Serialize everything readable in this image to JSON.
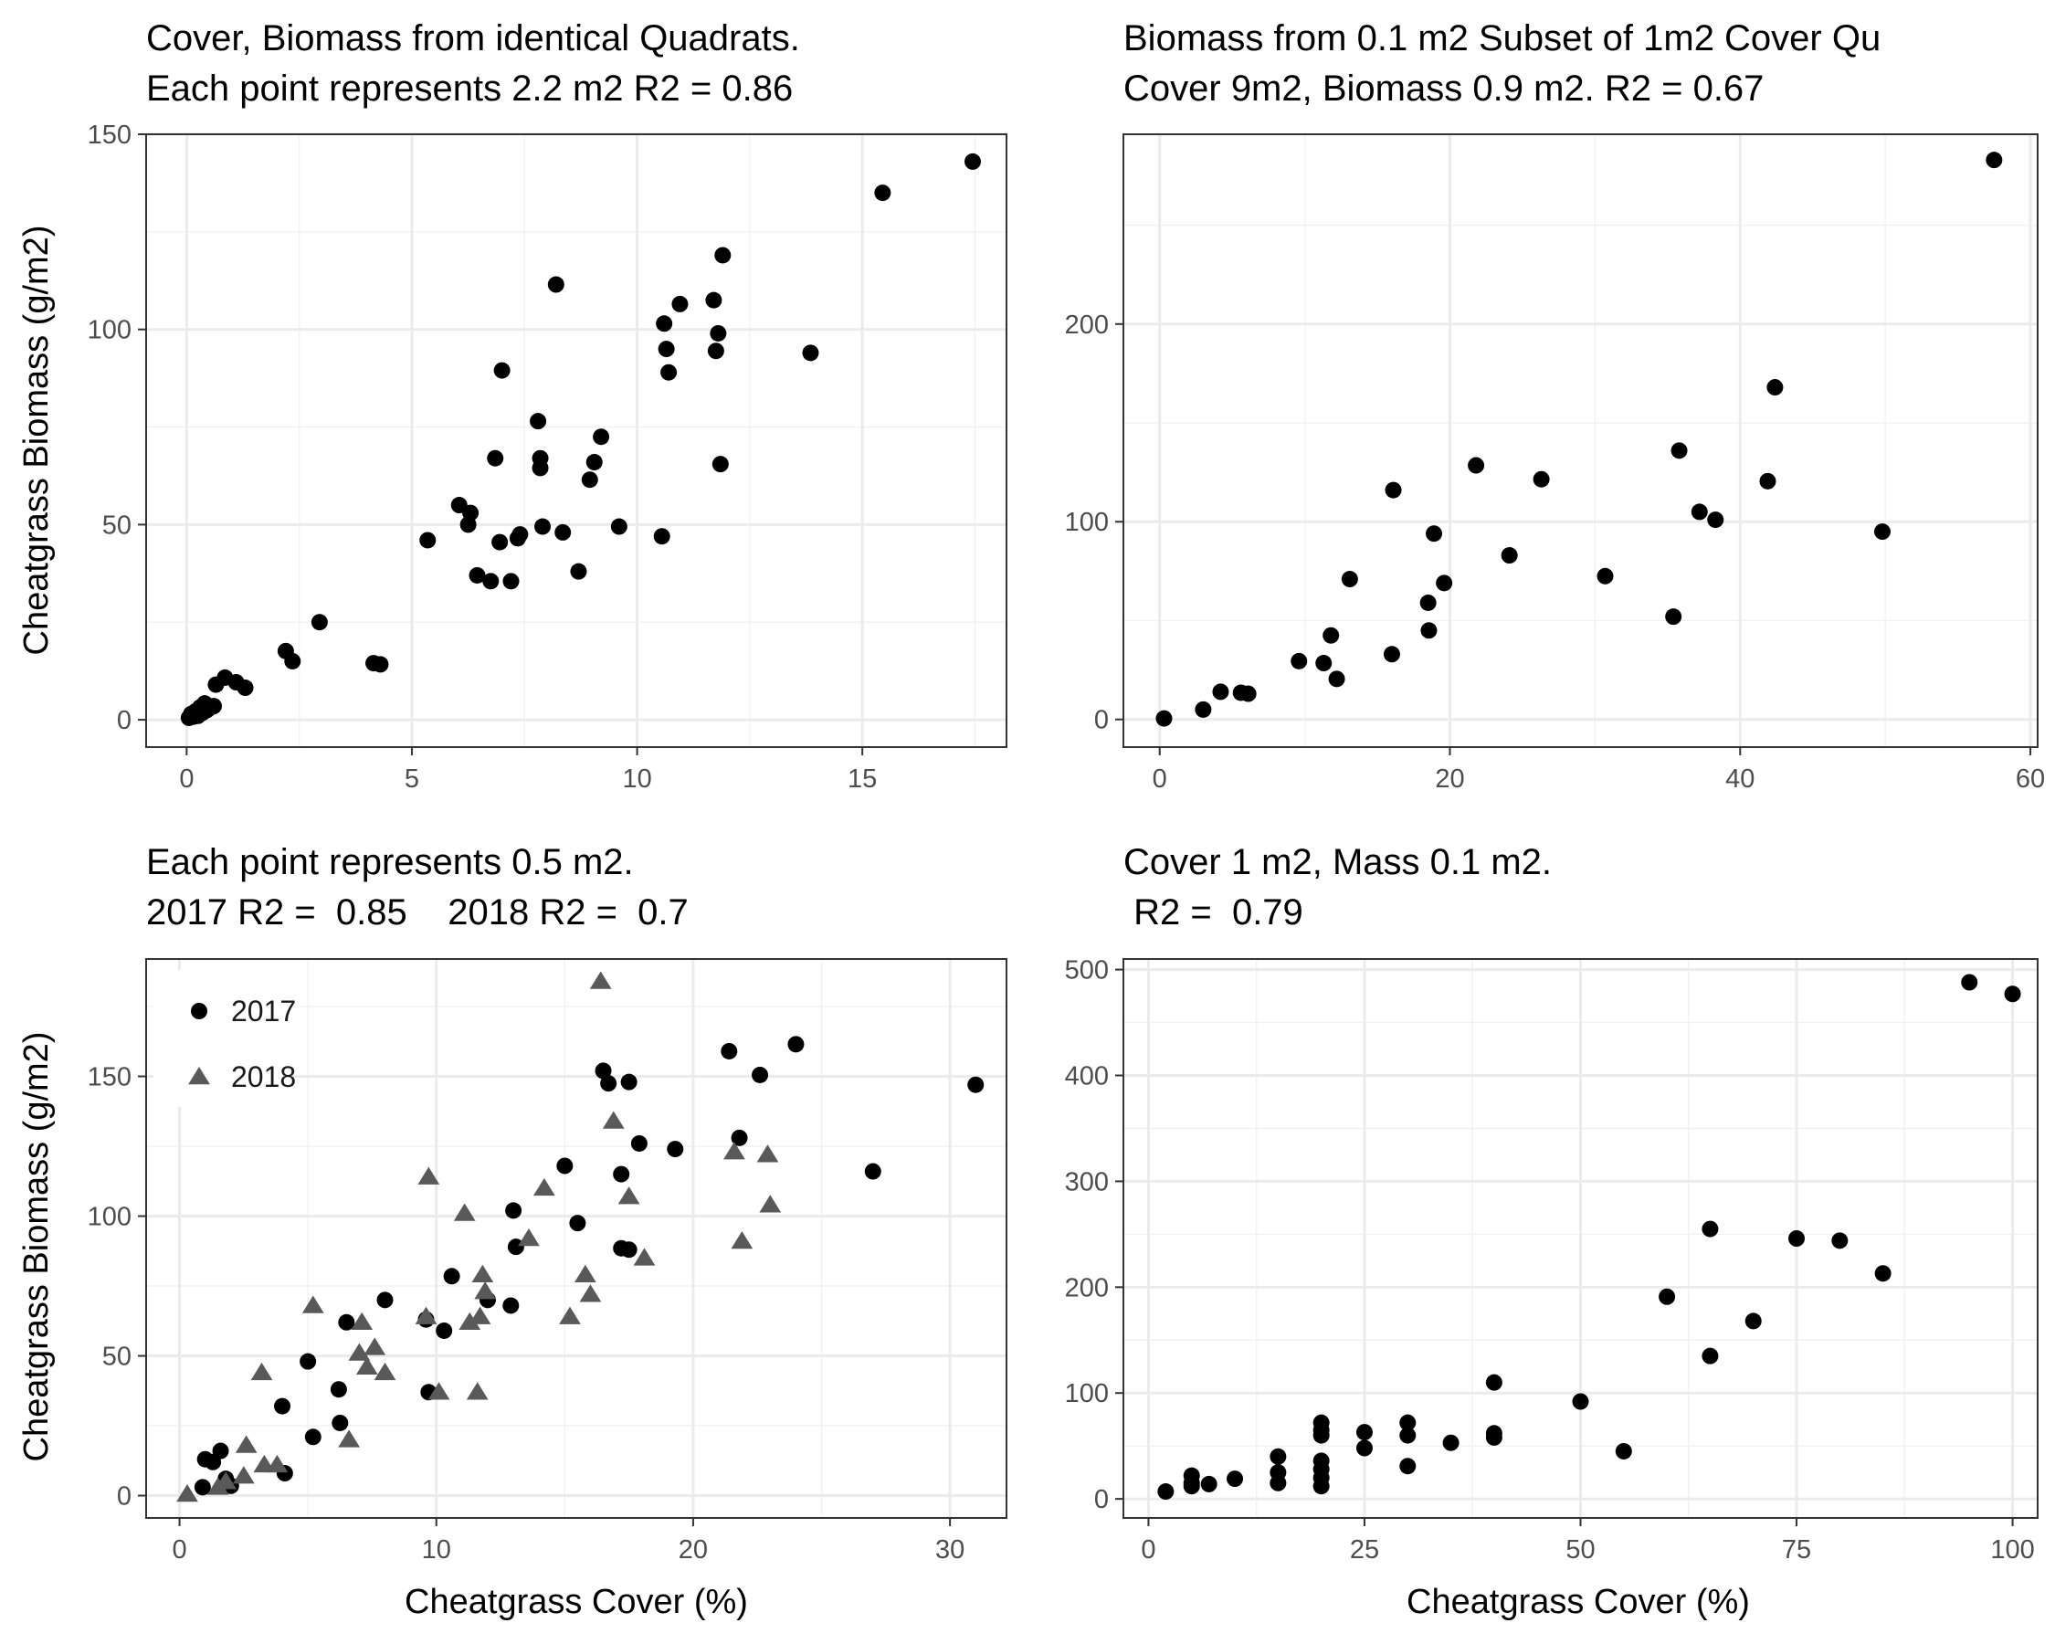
{
  "chart_data": [
    {
      "type": "scatter",
      "title_lines": [
        "Cover, Biomass from identical Quadrats.",
        "Each point represents 2.2 m2 R2 =  0.86"
      ],
      "xlabel": "",
      "ylabel": "Cheatgrass Biomass (g/m2)",
      "xlim": [
        -0.9,
        18.2
      ],
      "ylim": [
        -7,
        150
      ],
      "xticks": [
        0,
        5,
        10,
        15
      ],
      "yticks": [
        0,
        50,
        100,
        150
      ],
      "xminor": [
        2.5,
        7.5,
        12.5,
        17.5
      ],
      "yminor": [
        25,
        75,
        125
      ],
      "grid": true,
      "series": [
        {
          "marker": "circle",
          "color": "#000000",
          "points": [
            [
              0.05,
              0.5
            ],
            [
              0.1,
              1.5
            ],
            [
              0.15,
              0.8
            ],
            [
              0.2,
              2.2
            ],
            [
              0.25,
              1.0
            ],
            [
              0.3,
              3.2
            ],
            [
              0.35,
              1.8
            ],
            [
              0.4,
              4.2
            ],
            [
              0.45,
              2.5
            ],
            [
              0.5,
              3.0
            ],
            [
              0.6,
              3.5
            ],
            [
              0.65,
              9.0
            ],
            [
              0.85,
              10.8
            ],
            [
              1.1,
              9.6
            ],
            [
              1.3,
              8.2
            ],
            [
              2.2,
              17.6
            ],
            [
              2.35,
              15.0
            ],
            [
              2.95,
              25.0
            ],
            [
              4.15,
              14.5
            ],
            [
              4.3,
              14.2
            ],
            [
              5.35,
              46.0
            ],
            [
              6.05,
              55.0
            ],
            [
              6.25,
              50.0
            ],
            [
              6.3,
              53.0
            ],
            [
              6.45,
              37.0
            ],
            [
              6.75,
              35.5
            ],
            [
              6.85,
              67.0
            ],
            [
              6.95,
              45.5
            ],
            [
              7.0,
              89.5
            ],
            [
              7.2,
              35.5
            ],
            [
              7.35,
              46.5
            ],
            [
              7.4,
              47.5
            ],
            [
              7.8,
              76.5
            ],
            [
              7.85,
              67.0
            ],
            [
              7.85,
              64.5
            ],
            [
              7.9,
              49.5
            ],
            [
              8.2,
              111.5
            ],
            [
              8.35,
              48.0
            ],
            [
              8.7,
              38.0
            ],
            [
              8.95,
              61.5
            ],
            [
              9.05,
              66.0
            ],
            [
              9.2,
              72.5
            ],
            [
              9.6,
              49.5
            ],
            [
              10.55,
              47.0
            ],
            [
              10.6,
              101.5
            ],
            [
              10.65,
              95.0
            ],
            [
              10.7,
              89.0
            ],
            [
              10.95,
              106.5
            ],
            [
              11.7,
              107.5
            ],
            [
              11.75,
              94.5
            ],
            [
              11.8,
              99.0
            ],
            [
              11.85,
              65.5
            ],
            [
              11.9,
              119.0
            ],
            [
              13.85,
              94.0
            ],
            [
              15.45,
              135.0
            ],
            [
              17.45,
              143.0
            ]
          ]
        }
      ]
    },
    {
      "type": "scatter",
      "title_lines": [
        "Biomass from 0.1 m2 Subset of 1m2 Cover Qu",
        "Cover 9m2, Biomass 0.9 m2. R2 =  0.67"
      ],
      "xlabel": "",
      "ylabel": "",
      "xlim": [
        -2.5,
        60.5
      ],
      "ylim": [
        -14,
        296
      ],
      "xticks": [
        0,
        20,
        40,
        60
      ],
      "yticks": [
        0,
        100,
        200
      ],
      "xminor": [
        10,
        30,
        50
      ],
      "yminor": [
        50,
        150,
        250
      ],
      "grid": true,
      "series": [
        {
          "marker": "circle",
          "color": "#000000",
          "points": [
            [
              0.3,
              0.5
            ],
            [
              3.0,
              5.0
            ],
            [
              4.2,
              14.0
            ],
            [
              5.6,
              13.5
            ],
            [
              6.1,
              13.0
            ],
            [
              9.6,
              29.5
            ],
            [
              11.3,
              28.5
            ],
            [
              11.8,
              42.5
            ],
            [
              12.2,
              20.5
            ],
            [
              13.1,
              71.0
            ],
            [
              16.0,
              33.0
            ],
            [
              16.1,
              116.0
            ],
            [
              18.5,
              59.0
            ],
            [
              18.55,
              45.0
            ],
            [
              18.9,
              94.0
            ],
            [
              19.6,
              69.0
            ],
            [
              21.8,
              128.5
            ],
            [
              24.1,
              83.0
            ],
            [
              26.3,
              121.5
            ],
            [
              30.7,
              72.5
            ],
            [
              35.4,
              52.0
            ],
            [
              35.8,
              136.0
            ],
            [
              37.2,
              105.0
            ],
            [
              38.3,
              101.0
            ],
            [
              41.9,
              120.5
            ],
            [
              42.4,
              168.0
            ],
            [
              49.8,
              95.0
            ],
            [
              57.5,
              283.0
            ]
          ]
        }
      ]
    },
    {
      "type": "scatter",
      "title_lines": [
        "Each point represents 0.5 m2.",
        "2017 R2 =  0.85    2018 R2 =  0.7"
      ],
      "xlabel": "Cheatgrass Cover (%)",
      "ylabel": "Cheatgrass Biomass (g/m2)",
      "xlim": [
        -1.3,
        32.2
      ],
      "ylim": [
        -8,
        192
      ],
      "xticks": [
        0,
        10,
        20,
        30
      ],
      "yticks": [
        0,
        50,
        100,
        150
      ],
      "xminor": [
        5,
        15,
        25
      ],
      "yminor": [
        25,
        75,
        125,
        175
      ],
      "grid": true,
      "legend": {
        "position": "top-left",
        "entries": [
          "2017",
          "2018"
        ]
      },
      "series": [
        {
          "name": "2017",
          "marker": "circle",
          "color": "#000000",
          "points": [
            [
              0.9,
              3.0
            ],
            [
              1.0,
              13.0
            ],
            [
              1.3,
              12.0
            ],
            [
              1.6,
              16.0
            ],
            [
              1.8,
              6.0
            ],
            [
              2.0,
              3.5
            ],
            [
              4.0,
              32.0
            ],
            [
              4.1,
              8.0
            ],
            [
              5.0,
              48.0
            ],
            [
              5.2,
              21.0
            ],
            [
              6.2,
              38.0
            ],
            [
              6.25,
              26.0
            ],
            [
              6.5,
              62.0
            ],
            [
              8.0,
              70.0
            ],
            [
              9.6,
              63.0
            ],
            [
              9.7,
              37.0
            ],
            [
              10.3,
              59.0
            ],
            [
              10.6,
              78.5
            ],
            [
              12.0,
              70.0
            ],
            [
              12.9,
              68.0
            ],
            [
              13.0,
              102.0
            ],
            [
              13.1,
              89.0
            ],
            [
              15.0,
              118.0
            ],
            [
              15.5,
              97.5
            ],
            [
              16.5,
              152.0
            ],
            [
              16.7,
              147.5
            ],
            [
              17.2,
              88.5
            ],
            [
              17.2,
              115.0
            ],
            [
              17.5,
              148.0
            ],
            [
              17.5,
              88.0
            ],
            [
              17.9,
              126.0
            ],
            [
              19.3,
              124.0
            ],
            [
              21.4,
              159.0
            ],
            [
              21.8,
              128.0
            ],
            [
              22.6,
              150.5
            ],
            [
              24.0,
              161.5
            ],
            [
              27.0,
              116.0
            ],
            [
              31.0,
              147.0
            ]
          ]
        },
        {
          "name": "2018",
          "marker": "triangle",
          "color": "#595959",
          "points": [
            [
              0.3,
              0.5
            ],
            [
              1.5,
              3.0
            ],
            [
              1.8,
              5.0
            ],
            [
              2.5,
              7.0
            ],
            [
              2.6,
              18.0
            ],
            [
              3.2,
              44.0
            ],
            [
              3.3,
              11.0
            ],
            [
              3.8,
              11.0
            ],
            [
              5.2,
              68.0
            ],
            [
              6.6,
              20.0
            ],
            [
              7.0,
              51.0
            ],
            [
              7.1,
              62.0
            ],
            [
              7.3,
              46.0
            ],
            [
              7.6,
              53.0
            ],
            [
              8.0,
              44.0
            ],
            [
              9.6,
              64.0
            ],
            [
              9.7,
              114.0
            ],
            [
              10.1,
              37.0
            ],
            [
              11.1,
              101.0
            ],
            [
              11.3,
              62.0
            ],
            [
              11.6,
              37.0
            ],
            [
              11.7,
              64.0
            ],
            [
              11.8,
              79.0
            ],
            [
              11.9,
              73.0
            ],
            [
              13.6,
              92.0
            ],
            [
              14.2,
              110.0
            ],
            [
              15.2,
              64.0
            ],
            [
              15.8,
              79.0
            ],
            [
              16.0,
              72.0
            ],
            [
              16.4,
              184.0
            ],
            [
              16.9,
              134.0
            ],
            [
              17.5,
              107.0
            ],
            [
              18.1,
              85.0
            ],
            [
              21.6,
              123.0
            ],
            [
              21.9,
              91.0
            ],
            [
              22.9,
              122.0
            ],
            [
              23.0,
              104.0
            ]
          ]
        }
      ]
    },
    {
      "type": "scatter",
      "title_lines": [
        "Cover 1 m2, Mass 0.1 m2.",
        " R2 =  0.79"
      ],
      "xlabel": "Cheatgrass Cover (%)",
      "ylabel": "",
      "xlim": [
        -2.9,
        102.9
      ],
      "ylim": [
        -18,
        510
      ],
      "xticks": [
        0,
        25,
        50,
        75,
        100
      ],
      "yticks": [
        0,
        100,
        200,
        300,
        400,
        500
      ],
      "xminor": [
        12.5,
        37.5,
        62.5,
        87.5
      ],
      "yminor": [
        50,
        150,
        250,
        350,
        450
      ],
      "grid": true,
      "series": [
        {
          "marker": "circle",
          "color": "#000000",
          "points": [
            [
              2,
              7
            ],
            [
              5,
              12
            ],
            [
              5,
              15
            ],
            [
              5,
              22
            ],
            [
              7,
              14
            ],
            [
              10,
              19
            ],
            [
              15,
              15
            ],
            [
              15,
              25
            ],
            [
              15,
              40
            ],
            [
              20,
              12
            ],
            [
              20,
              20
            ],
            [
              20,
              28
            ],
            [
              20,
              36
            ],
            [
              20,
              60
            ],
            [
              20,
              65
            ],
            [
              20,
              72
            ],
            [
              25,
              48
            ],
            [
              25,
              63
            ],
            [
              30,
              31
            ],
            [
              30,
              60
            ],
            [
              30,
              72
            ],
            [
              35,
              53
            ],
            [
              40,
              58
            ],
            [
              40,
              62
            ],
            [
              40,
              110
            ],
            [
              50,
              92
            ],
            [
              55,
              45
            ],
            [
              60,
              191
            ],
            [
              65,
              135
            ],
            [
              65,
              255
            ],
            [
              70,
              168
            ],
            [
              75,
              246
            ],
            [
              80,
              244
            ],
            [
              85,
              213
            ],
            [
              95,
              488
            ],
            [
              100,
              477
            ]
          ]
        }
      ]
    }
  ]
}
